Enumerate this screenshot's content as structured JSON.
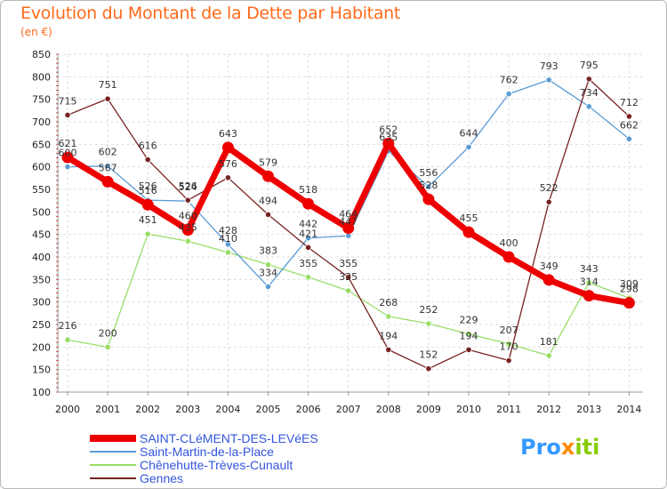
{
  "chart_data": {
    "type": "line",
    "title": "Evolution du Montant de la Dette par Habitant",
    "subtitle": "(en €)",
    "x": [
      "2000",
      "2001",
      "2002",
      "2003",
      "2004",
      "2005",
      "2006",
      "2007",
      "2008",
      "2009",
      "2010",
      "2011",
      "2012",
      "2013",
      "2014"
    ],
    "ylim": [
      100,
      850
    ],
    "yticks": [
      100,
      150,
      200,
      250,
      300,
      350,
      400,
      450,
      500,
      550,
      600,
      650,
      700,
      750,
      800,
      850
    ],
    "grid": true,
    "legend_position": "bottom-left",
    "series": [
      {
        "name": "SAINT-CLéMENT-DES-LEVéES",
        "color": "#ee0000",
        "values": [
          621,
          567,
          516,
          460,
          643,
          579,
          518,
          464,
          652,
          528,
          455,
          400,
          349,
          314,
          298
        ]
      },
      {
        "name": "Saint-Martin-de-la-Place",
        "color": "#5b9bd5",
        "values": [
          600,
          602,
          526,
          524,
          428,
          334,
          442,
          447,
          635,
          556,
          644,
          762,
          793,
          734,
          662
        ]
      },
      {
        "name": "Chênehutte-Trèves-Cunault",
        "color": "#99dd66",
        "values": [
          216,
          200,
          451,
          435,
          410,
          383,
          355,
          325,
          268,
          252,
          229,
          207,
          181,
          343,
          309
        ]
      },
      {
        "name": "Gennes",
        "color": "#772222",
        "values": [
          715,
          751,
          616,
          526,
          576,
          494,
          421,
          355,
          194,
          152,
          194,
          170,
          522,
          795,
          712
        ]
      }
    ]
  },
  "labels": {
    "s0": [
      "621",
      "567",
      "516",
      "460",
      "643",
      "579",
      "518",
      "464",
      "652",
      "528",
      "455",
      "400",
      "349",
      "314",
      "298"
    ],
    "s1": [
      "600",
      "602",
      "526",
      "524",
      "428",
      "334",
      "442",
      "447",
      "635",
      "556",
      "644",
      "762",
      "793",
      "734",
      "662"
    ],
    "s2": [
      "216",
      "200",
      "451",
      "435",
      "410",
      "383",
      "355",
      "325",
      "268",
      "252",
      "229",
      "207",
      "181",
      "343",
      "309"
    ],
    "s3": [
      "715",
      "751",
      "616",
      "526",
      "576",
      "494",
      "421",
      "355",
      "194",
      "152",
      "194",
      "170",
      "522",
      "795",
      "712"
    ]
  },
  "logo": {
    "p1": "Pro",
    "x": "x",
    "p2": "iti",
    "colors": [
      "#3399ff",
      "#ff8800",
      "#88cc00"
    ]
  }
}
